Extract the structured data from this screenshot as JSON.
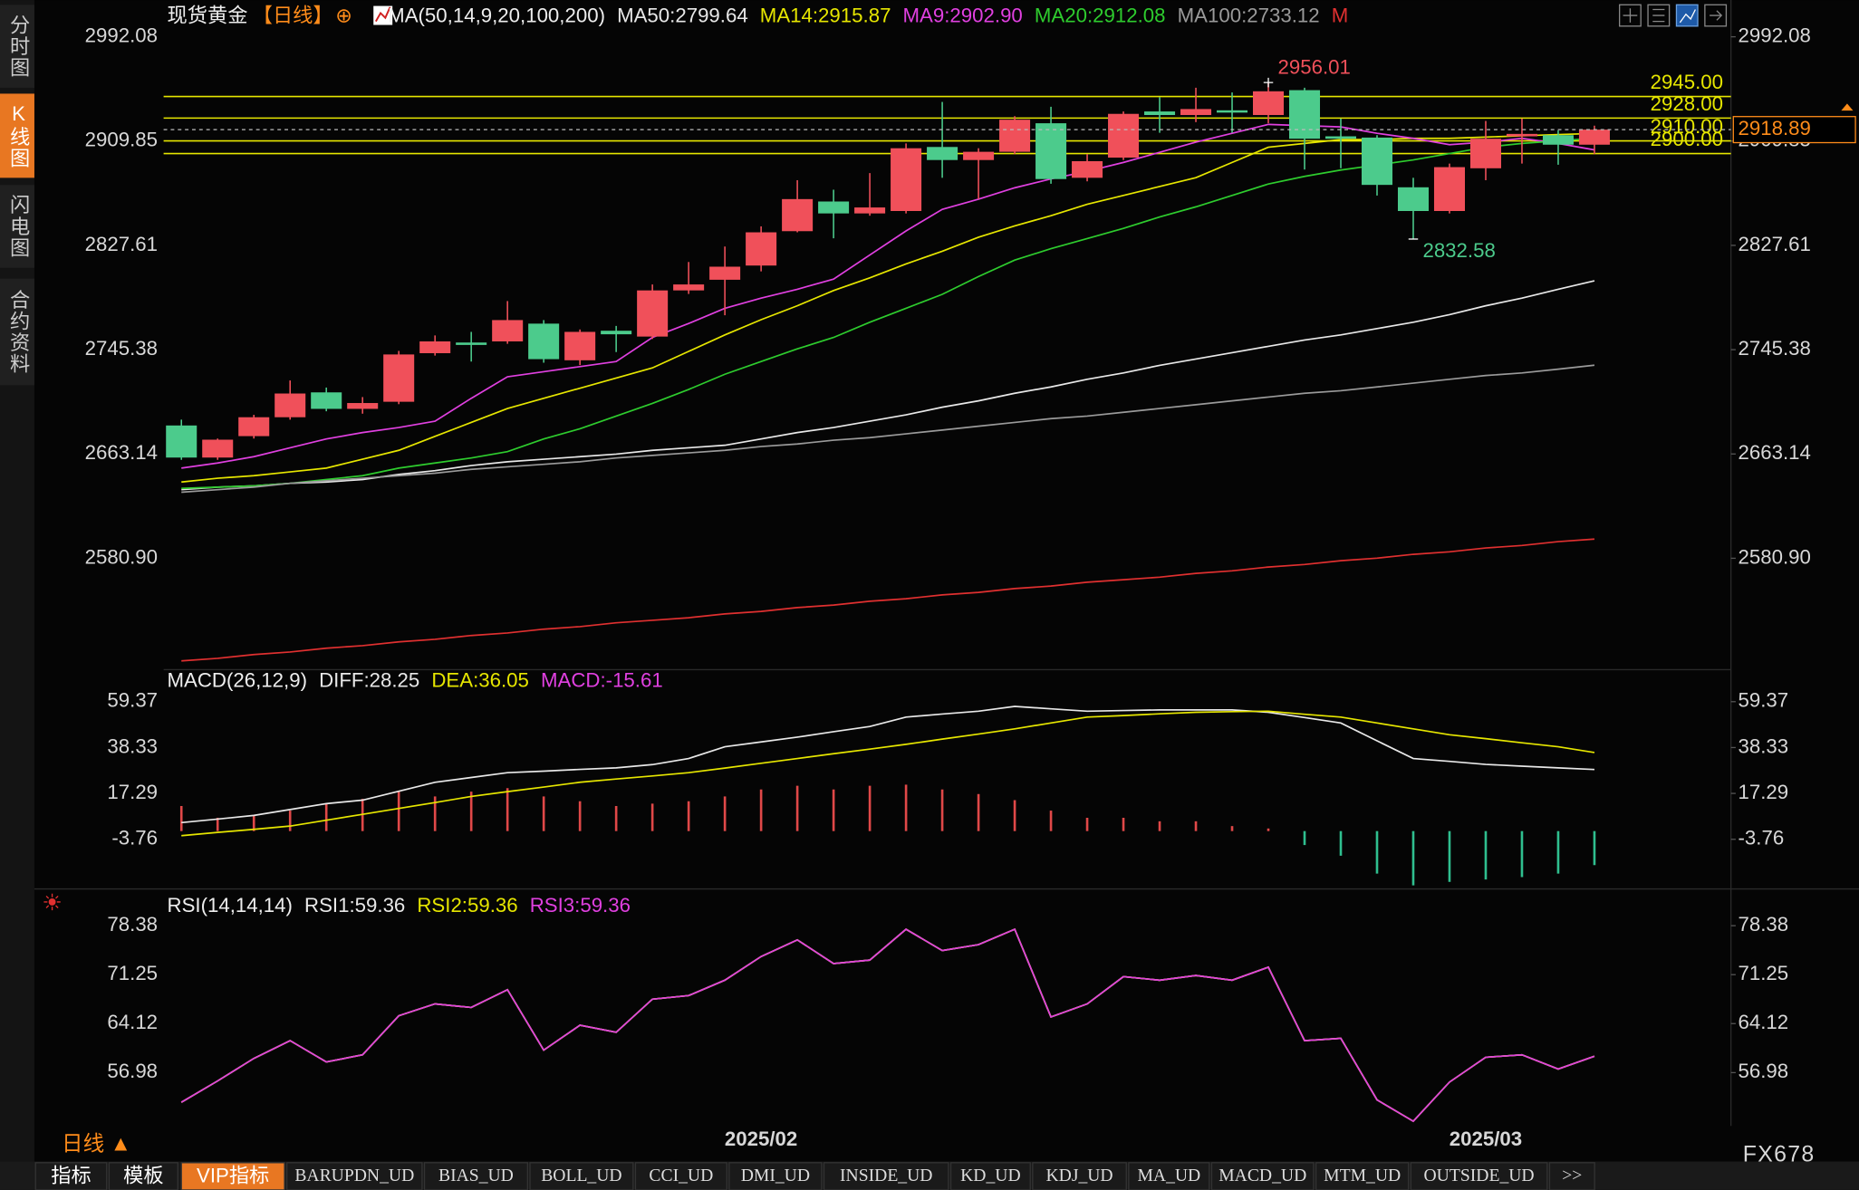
{
  "ui": {
    "sidebar_tabs": [
      "分时图",
      "K线图",
      "闪电图",
      "合约资料"
    ],
    "active_sidebar_tab": 1,
    "period_button": "日线 ▲",
    "bottom_tabs": [
      "指标",
      "模板",
      "VIP指标",
      "BARUPDN_UD",
      "BIAS_UD",
      "BOLL_UD",
      "CCI_UD",
      "DMI_UD",
      "INSIDE_UD",
      "KD_UD",
      "KDJ_UD",
      "MA_UD",
      "MACD_UD",
      "MTM_UD",
      "OUTSIDE_UD",
      ">>"
    ],
    "active_bottom_tab": 2,
    "watermark": "FX678"
  },
  "chart_data": [
    {
      "type": "candlestick",
      "title": "现货黄金",
      "period": "【日线】",
      "add_icon": "⊕",
      "indicator": "MA(50,14,9,20,100,200)",
      "categories": [
        null,
        null,
        null,
        null,
        null,
        null,
        null,
        null,
        null,
        null,
        null,
        null,
        null,
        null,
        null,
        null,
        "2025/02",
        null,
        null,
        null,
        null,
        null,
        null,
        null,
        null,
        null,
        null,
        null,
        null,
        null,
        null,
        null,
        null,
        null,
        null,
        null,
        "2025/03",
        null,
        null,
        null
      ],
      "open": [
        2685.6,
        2660.3,
        2677.2,
        2692.1,
        2711.7,
        2698.7,
        2704.3,
        2742.6,
        2751.0,
        2751.9,
        2765.9,
        2737.0,
        2760.3,
        2755.7,
        2792.1,
        2800.5,
        2811.7,
        2838.8,
        2862.2,
        2852.8,
        2854.7,
        2905.2,
        2894.9,
        2901.4,
        2923.9,
        2880.9,
        2896.8,
        2933.2,
        2930.4,
        2934.1,
        2930.4,
        2950.0,
        2913.6,
        2912.6,
        2873.4,
        2854.7,
        2888.4,
        2913.6,
        2914.5,
        2907.0
      ],
      "high": [
        2690.2,
        2675.3,
        2694.0,
        2721.1,
        2715.5,
        2708.0,
        2744.4,
        2756.6,
        2759.4,
        2783.7,
        2768.7,
        2761.3,
        2764.1,
        2796.8,
        2814.5,
        2826.7,
        2842.6,
        2879.0,
        2871.5,
        2884.6,
        2908.0,
        2940.7,
        2904.2,
        2929.5,
        2936.9,
        2899.6,
        2933.2,
        2944.4,
        2951.9,
        2948.2,
        2956.01,
        2951.9,
        2927.6,
        2914.5,
        2880.9,
        2892.1,
        2925.7,
        2927.6,
        2918.3,
        2922.0
      ],
      "low": [
        2658.5,
        2658.5,
        2675.3,
        2690.2,
        2696.8,
        2694.9,
        2702.4,
        2740.7,
        2736.0,
        2750.0,
        2735.1,
        2733.2,
        2743.5,
        2753.8,
        2789.3,
        2772.5,
        2807.1,
        2837.9,
        2833.2,
        2851.0,
        2852.8,
        2880.9,
        2864.1,
        2899.6,
        2876.2,
        2878.1,
        2894.9,
        2916.4,
        2924.8,
        2916.4,
        2923.9,
        2887.4,
        2888.4,
        2866.9,
        2832.58,
        2852.8,
        2879.0,
        2892.1,
        2891.2,
        2899.6
      ],
      "close": [
        2660.3,
        2674.4,
        2692.1,
        2710.8,
        2698.7,
        2703.3,
        2741.6,
        2751.9,
        2749.1,
        2768.7,
        2737.9,
        2759.4,
        2757.5,
        2792.1,
        2796.8,
        2810.8,
        2837.9,
        2864.1,
        2852.8,
        2857.5,
        2904.2,
        2894.9,
        2901.4,
        2926.7,
        2879.9,
        2894.0,
        2931.3,
        2930.4,
        2935.1,
        2932.3,
        2949.1,
        2911.7,
        2911.7,
        2875.3,
        2854.7,
        2889.3,
        2911.7,
        2915.5,
        2907.0,
        2918.89
      ],
      "up_color": "#f0505a",
      "down_color": "#4ccb8c",
      "title_color": "#ff8c1a",
      "series": [
        {
          "name": "MA50:2799.64",
          "color": "#e8e8e8",
          "values": [
            2635,
            2637,
            2638,
            2640,
            2641,
            2643,
            2647,
            2650,
            2654,
            2657,
            2659,
            2661,
            2663,
            2666,
            2668,
            2670,
            2675,
            2680,
            2684,
            2689,
            2694,
            2700,
            2705,
            2711,
            2716,
            2722,
            2727,
            2733,
            2738,
            2743,
            2748,
            2753,
            2757,
            2762,
            2767,
            2773,
            2780,
            2786,
            2793,
            2799.64
          ]
        },
        {
          "name": "MA14:2915.87",
          "color": "#e6e600",
          "values": [
            2641,
            2644,
            2646,
            2649,
            2652,
            2659,
            2666,
            2677,
            2688,
            2699,
            2707,
            2715,
            2723,
            2731,
            2744,
            2757,
            2769,
            2780,
            2792,
            2802,
            2813,
            2823,
            2834,
            2843,
            2851,
            2860,
            2867,
            2874,
            2881,
            2893,
            2905,
            2908,
            2911,
            2911,
            2912,
            2912,
            2913,
            2914,
            2915,
            2915.87
          ]
        },
        {
          "name": "MA9:2902.90",
          "color": "#e040e0",
          "values": [
            2652,
            2656,
            2661,
            2668,
            2675,
            2680,
            2684,
            2689,
            2707,
            2724,
            2728,
            2732,
            2736,
            2755,
            2766,
            2778,
            2786,
            2793,
            2801,
            2820,
            2839,
            2856,
            2864,
            2873,
            2880,
            2886,
            2893,
            2901,
            2909,
            2916,
            2923,
            2922,
            2921,
            2916,
            2912,
            2907,
            2909,
            2912,
            2908,
            2902.9
          ]
        },
        {
          "name": "MA20:2912.08",
          "color": "#2ecc2e",
          "values": [
            2636,
            2637,
            2638,
            2640,
            2643,
            2646,
            2652,
            2656,
            2660,
            2665,
            2675,
            2683,
            2693,
            2703,
            2714,
            2726,
            2736,
            2746,
            2755,
            2767,
            2778,
            2789,
            2803,
            2816,
            2825,
            2833,
            2841,
            2850,
            2858,
            2867,
            2876,
            2882,
            2887,
            2891,
            2895,
            2900,
            2905,
            2908,
            2910,
            2912.08
          ]
        },
        {
          "name": "MA100:2733.12",
          "color": "#9a9a9a",
          "values": [
            2633,
            2635,
            2637,
            2640,
            2642,
            2644,
            2646,
            2648,
            2651,
            2653,
            2655,
            2657,
            2660,
            2662,
            2664,
            2666,
            2669,
            2671,
            2674,
            2676,
            2679,
            2682,
            2685,
            2688,
            2691,
            2693,
            2696,
            2699,
            2702,
            2705,
            2708,
            2711,
            2713,
            2716,
            2719,
            2722,
            2725,
            2727,
            2730,
            2733.12
          ]
        },
        {
          "name": "M",
          "color": "#e03030",
          "values": [
            2500,
            2502,
            2505,
            2507,
            2510,
            2512,
            2515,
            2517,
            2520,
            2522,
            2525,
            2527,
            2530,
            2532,
            2534,
            2537,
            2539,
            2542,
            2544,
            2547,
            2549,
            2552,
            2554,
            2557,
            2559,
            2562,
            2564,
            2566,
            2569,
            2571,
            2574,
            2576,
            2579,
            2581,
            2584,
            2586,
            2589,
            2591,
            2594,
            2596
          ]
        }
      ],
      "hlines": [
        {
          "value": 2945,
          "label": "2945.00"
        },
        {
          "value": 2928,
          "label": "2928.00"
        },
        {
          "value": 2910,
          "label": "2910.00"
        },
        {
          "value": 2900,
          "label": "2900.00"
        }
      ],
      "hline_color": "#e6e600",
      "last_price_color": "#ff8c1a",
      "ylim": [
        2497.73,
        3021.05
      ],
      "yticks": [
        2992.08,
        2909.85,
        2827.61,
        2745.38,
        2663.14,
        {
          "value": 2580.9,
          "label": "2580.90"
        }
      ]
    },
    {
      "type": "macd",
      "title": "MACD(26,12,9)",
      "series": [
        {
          "name": "DIFF:28.25",
          "color": "#e8e8e8",
          "values": [
            3.9,
            5.5,
            7.2,
            9.9,
            12.6,
            14.2,
            18.3,
            22.4,
            24.6,
            26.8,
            27.5,
            28.3,
            29.0,
            30.5,
            33.3,
            38.7,
            40.9,
            43.1,
            45.6,
            48.0,
            52.3,
            53.7,
            55.0,
            57.2,
            56.1,
            55.0,
            55.3,
            55.6,
            55.6,
            55.6,
            54.5,
            52.1,
            49.6,
            41.4,
            33.3,
            32.0,
            30.6,
            29.8,
            29.0,
            28.25
          ]
        },
        {
          "name": "DEA:36.05",
          "color": "#e6e600",
          "values": [
            -2.1,
            -0.6,
            0.8,
            2.3,
            5.0,
            7.7,
            10.4,
            13.1,
            15.9,
            18.1,
            20.2,
            22.4,
            23.9,
            25.3,
            26.8,
            28.9,
            31.1,
            33.3,
            35.5,
            37.6,
            39.8,
            42.2,
            44.5,
            46.9,
            49.6,
            52.3,
            53.0,
            53.8,
            54.5,
            54.8,
            55.0,
            53.6,
            52.3,
            49.6,
            46.9,
            44.2,
            42.4,
            40.5,
            38.7,
            36.05
          ]
        },
        {
          "name": "MACD:-15.61",
          "color": "#e040e0",
          "style": "histogram",
          "values": [
            11.5,
            6.1,
            7.2,
            9.4,
            12.6,
            14.8,
            18.1,
            15.9,
            18.1,
            19.7,
            15.9,
            13.7,
            11.5,
            12.6,
            13.7,
            15.9,
            19.1,
            20.8,
            19.1,
            20.8,
            21.3,
            19.1,
            17.0,
            14.2,
            9.4,
            6.1,
            6.1,
            4.5,
            4.5,
            2.3,
            1.2,
            -6.4,
            -11.3,
            -19.5,
            -24.9,
            -23.3,
            -22.2,
            -21.1,
            -19.5,
            -15.61
          ]
        }
      ],
      "up_color": "#e04848",
      "down_color": "#2fbf8f",
      "ylim": [
        -26.53,
        63.18
      ],
      "yticks": [
        59.37,
        38.33,
        17.29,
        -3.76
      ]
    },
    {
      "type": "rsi",
      "title": "RSI(14,14,14)",
      "series": [
        {
          "name": "RSI1:59.36",
          "color": "#e8e8e8",
          "values": [
            52.66,
            55.77,
            59.05,
            61.64,
            58.53,
            59.57,
            65.26,
            66.99,
            66.47,
            69.06,
            60.26,
            63.88,
            62.85,
            67.68,
            68.2,
            70.44,
            73.89,
            76.31,
            72.86,
            73.37,
            77.86,
            74.76,
            75.62,
            77.86,
            65.09,
            66.99,
            70.96,
            70.44,
            71.13,
            70.44,
            72.34,
            61.64,
            61.98,
            53.01,
            49.9,
            55.6,
            59.22,
            59.57,
            57.5,
            59.36
          ]
        },
        {
          "name": "RSI2:59.36",
          "color": "#e6e600",
          "values": [
            52.66,
            55.77,
            59.05,
            61.64,
            58.53,
            59.57,
            65.26,
            66.99,
            66.47,
            69.06,
            60.26,
            63.88,
            62.85,
            67.68,
            68.2,
            70.44,
            73.89,
            76.31,
            72.86,
            73.37,
            77.86,
            74.76,
            75.62,
            77.86,
            65.09,
            66.99,
            70.96,
            70.44,
            71.13,
            70.44,
            72.34,
            61.64,
            61.98,
            53.01,
            49.9,
            55.6,
            59.22,
            59.57,
            57.5,
            59.36
          ]
        },
        {
          "name": "RSI3:59.36",
          "color": "#e040e0",
          "values": [
            52.66,
            55.77,
            59.05,
            61.64,
            58.53,
            59.57,
            65.26,
            66.99,
            66.47,
            69.06,
            60.26,
            63.88,
            62.85,
            67.68,
            68.2,
            70.44,
            73.89,
            76.31,
            72.86,
            73.37,
            77.86,
            74.76,
            75.62,
            77.86,
            65.09,
            66.99,
            70.96,
            70.44,
            71.13,
            70.44,
            72.34,
            61.64,
            61.98,
            53.01,
            49.9,
            55.6,
            59.22,
            59.57,
            57.5,
            59.36
          ]
        }
      ],
      "ylim": [
        49.21,
        79.42
      ],
      "yticks": [
        78.38,
        71.25,
        64.12,
        56.98
      ]
    }
  ]
}
